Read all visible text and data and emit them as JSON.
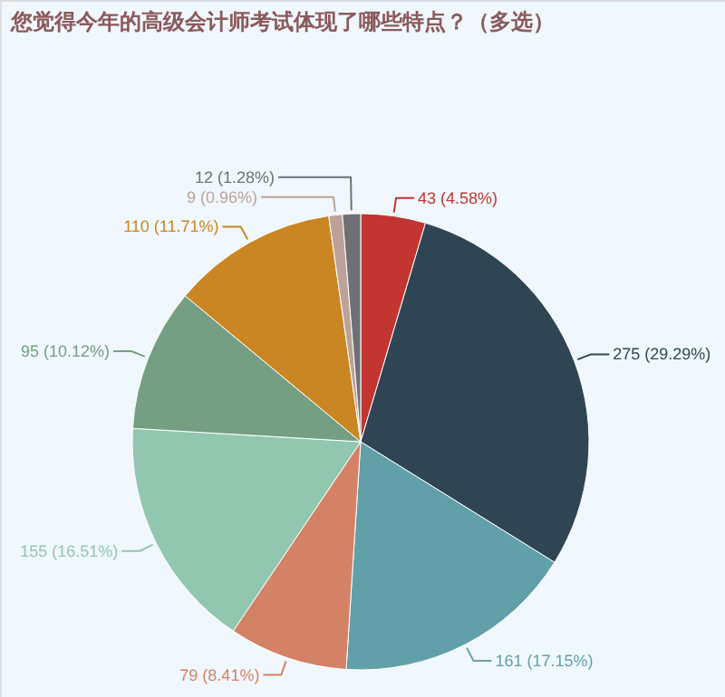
{
  "chart_data": {
    "type": "pie",
    "title": "您觉得今年的高级会计师考试体现了哪些特点？（多选）",
    "categories": [
      null,
      null,
      null,
      null,
      null,
      null,
      null,
      null,
      null
    ],
    "values": [
      43,
      275,
      161,
      79,
      155,
      95,
      110,
      9,
      12
    ],
    "colors": [
      "#c23531",
      "#2f4554",
      "#61a0a8",
      "#d48265",
      "#91c7ae",
      "#749f83",
      "#ca8622",
      "#bda29a",
      "#6e7074"
    ],
    "value_labels": [
      "43 (4.58%)",
      "275 (29.29%)",
      "161 (17.15%)",
      "79 (8.41%)",
      "155 (16.51%)",
      "95 (10.12%)",
      "110 (11.71%)",
      "9 (0.96%)",
      "12 (1.28%)"
    ]
  }
}
